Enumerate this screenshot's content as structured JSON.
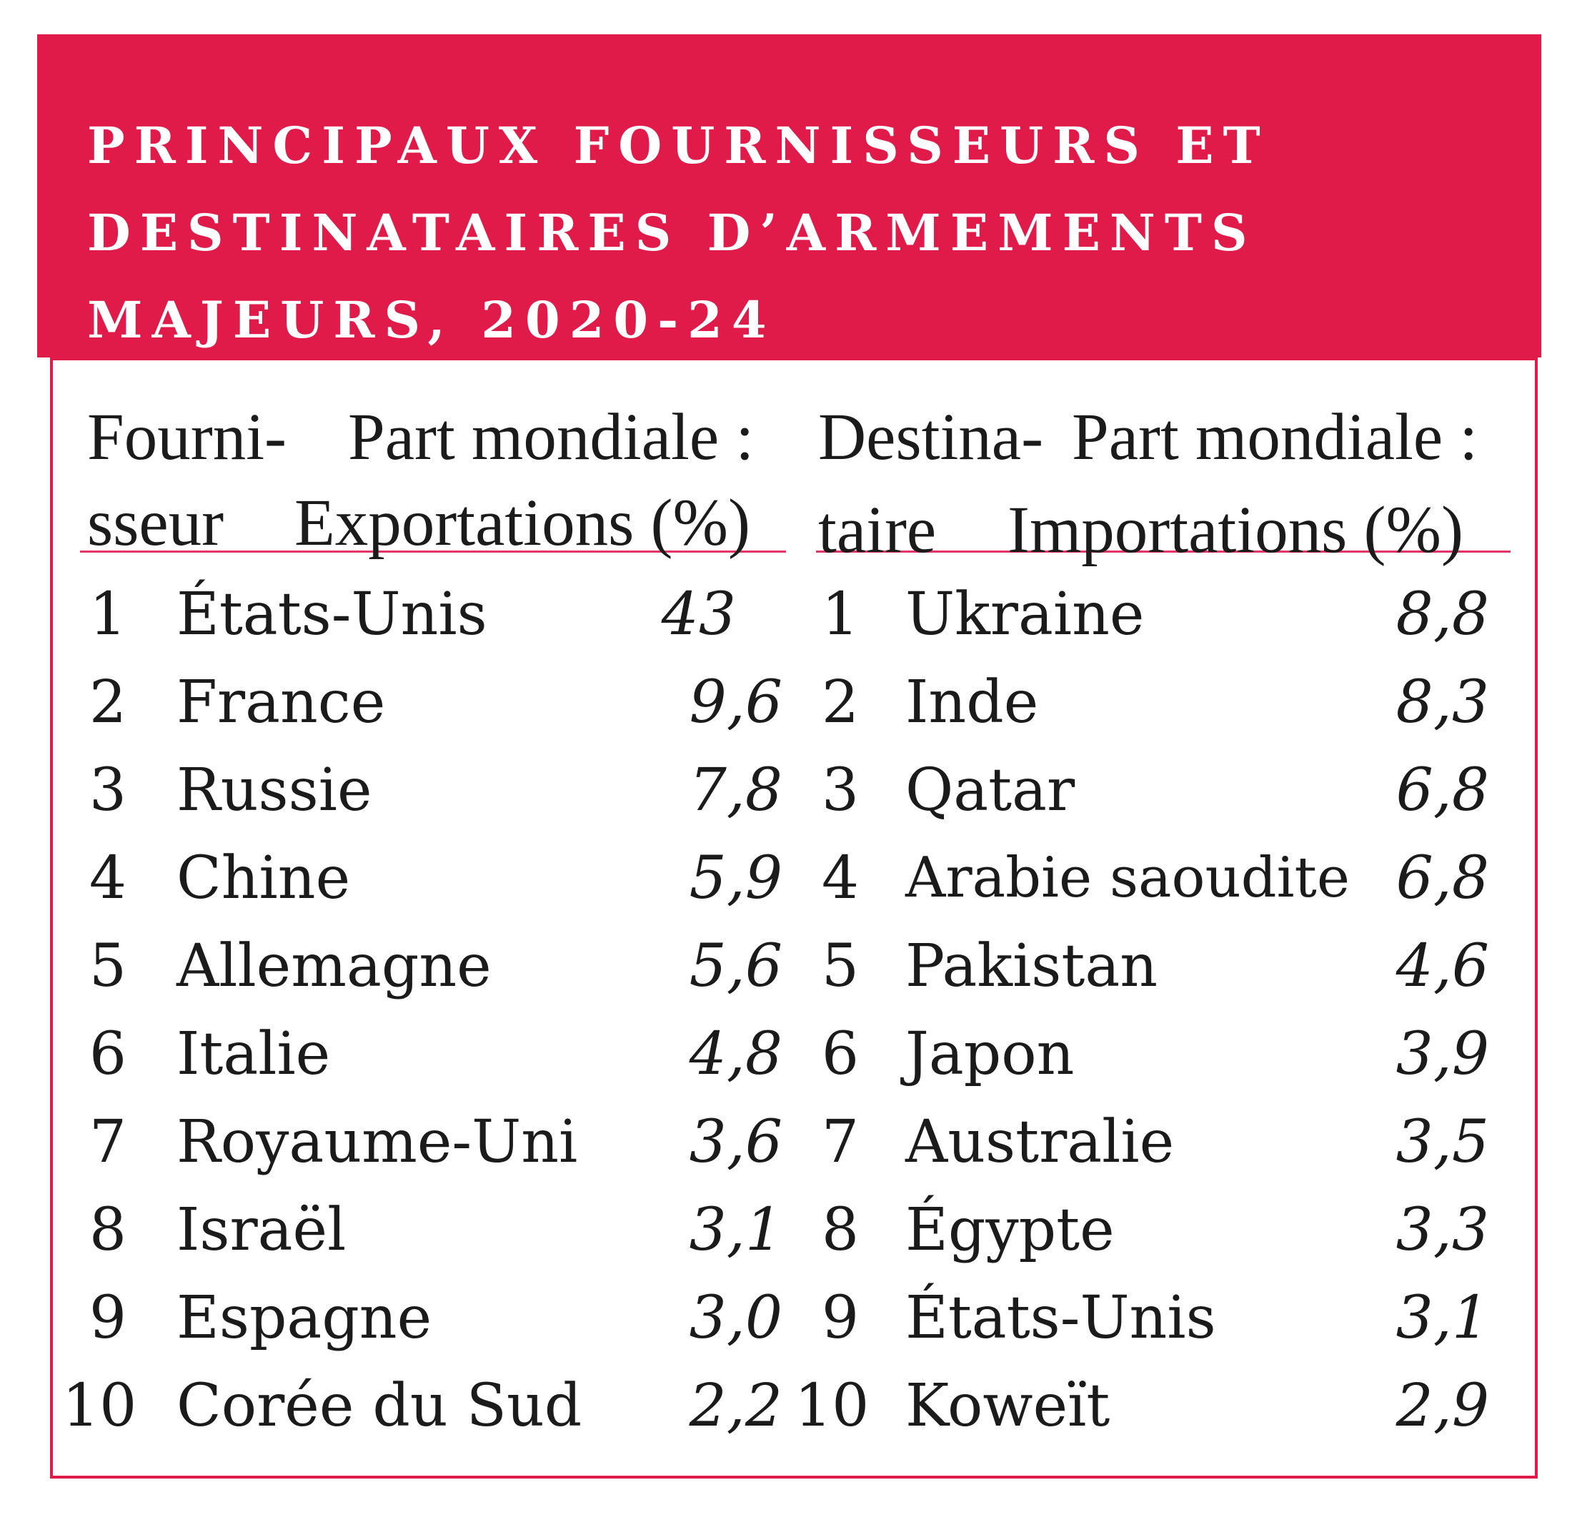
{
  "title_lines": [
    "PRINCIPAUX FOURNISSEURS ET",
    "DESTINATAIRES D’ARMEMENTS",
    "MAJEURS, 2020-24"
  ],
  "suppliers": {
    "header_col1_line1": "Fourni-",
    "header_col1_line2": "sseur",
    "header_col2_line1": "Part mondiale :",
    "header_col2_line2": "Exportations (%)",
    "rows": [
      {
        "rank": "1",
        "name": "États-Unis",
        "value": "43"
      },
      {
        "rank": "2",
        "name": "France",
        "value": "9,6"
      },
      {
        "rank": "3",
        "name": "Russie",
        "value": "7,8"
      },
      {
        "rank": "4",
        "name": "Chine",
        "value": "5,9"
      },
      {
        "rank": "5",
        "name": "Allemagne",
        "value": "5,6"
      },
      {
        "rank": "6",
        "name": "Italie",
        "value": "4,8"
      },
      {
        "rank": "7",
        "name": "Royaume-Uni",
        "value": "3,6"
      },
      {
        "rank": "8",
        "name": "Israël",
        "value": "3,1"
      },
      {
        "rank": "9",
        "name": "Espagne",
        "value": "3,0"
      },
      {
        "rank": "10",
        "name": "Corée du Sud",
        "value": "2,2"
      }
    ]
  },
  "recipients": {
    "header_col1_line1": "Destina-",
    "header_col1_line2": "taire",
    "header_col2_line1": "Part mondiale :",
    "header_col2_line2": "Importations (%)",
    "rows": [
      {
        "rank": "1",
        "name": "Ukraine",
        "value": "8,8"
      },
      {
        "rank": "2",
        "name": "Inde",
        "value": "8,3"
      },
      {
        "rank": "3",
        "name": "Qatar",
        "value": "6,8"
      },
      {
        "rank": "4",
        "name": "Arabie saoudite",
        "value": "6,8"
      },
      {
        "rank": "5",
        "name": "Pakistan",
        "value": "4,6"
      },
      {
        "rank": "6",
        "name": "Japon",
        "value": "3,9"
      },
      {
        "rank": "7",
        "name": "Australie",
        "value": "3,5"
      },
      {
        "rank": "8",
        "name": "Égypte",
        "value": "3,3"
      },
      {
        "rank": "9",
        "name": "États-Unis",
        "value": "3,1"
      },
      {
        "rank": "10",
        "name": "Koweït",
        "value": "2,9"
      }
    ]
  },
  "colors": {
    "accent": "#e01b4a",
    "text": "#1b1b1b"
  }
}
